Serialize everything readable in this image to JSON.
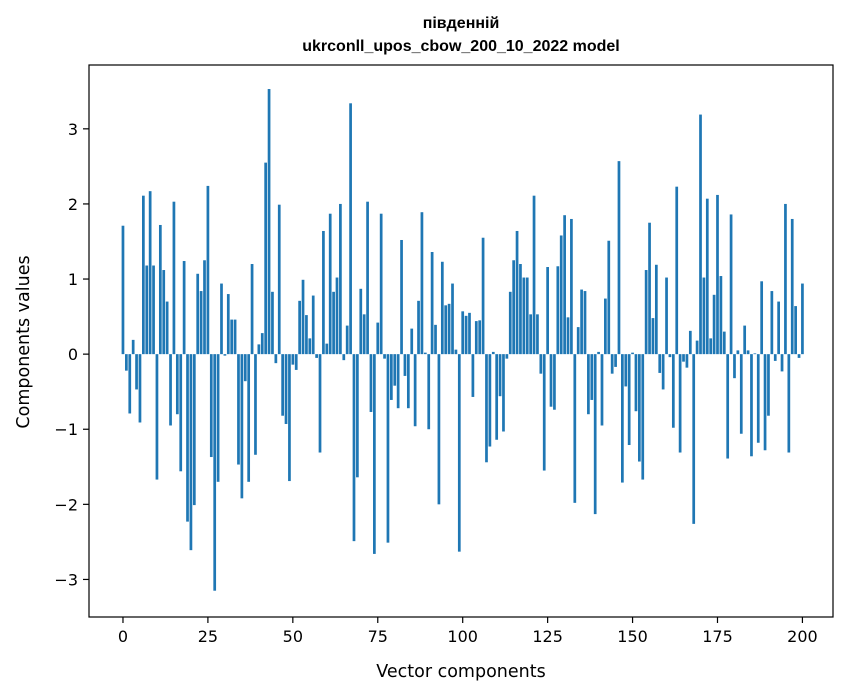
{
  "chart_data": {
    "type": "bar",
    "title_line1": "південній",
    "title_line2": "ukrconll_upos_cbow_200_10_2022 model",
    "xlabel": "Vector components",
    "ylabel": "Components values",
    "xlim": [
      -10,
      209
    ],
    "ylim": [
      -3.5,
      3.85
    ],
    "xticks": [
      0,
      25,
      50,
      75,
      100,
      125,
      150,
      175,
      200
    ],
    "yticks": [
      -3,
      -2,
      -1,
      0,
      1,
      2,
      3
    ],
    "ytick_labels": [
      "−3",
      "−2",
      "−1",
      "0",
      "1",
      "2",
      "3"
    ],
    "bar_color": "#1f77b4",
    "values": [
      1.71,
      -0.22,
      -0.79,
      0.19,
      -0.47,
      -0.91,
      2.11,
      1.18,
      2.17,
      1.18,
      -1.67,
      1.72,
      1.12,
      0.7,
      -0.95,
      2.03,
      -0.8,
      -1.56,
      1.24,
      -2.23,
      -2.61,
      -2.01,
      1.07,
      0.84,
      1.25,
      2.24,
      -1.37,
      -3.15,
      -1.7,
      0.94,
      -0.02,
      0.8,
      0.46,
      0.46,
      -1.47,
      -1.92,
      -0.36,
      -1.7,
      1.2,
      -1.34,
      0.13,
      0.28,
      2.55,
      3.53,
      0.83,
      -0.12,
      1.99,
      -0.82,
      -0.93,
      -1.69,
      -0.14,
      -0.21,
      0.71,
      0.99,
      0.52,
      0.21,
      0.78,
      -0.05,
      -1.31,
      1.64,
      0.14,
      1.87,
      0.83,
      1.02,
      2.0,
      -0.08,
      0.38,
      3.34,
      -2.49,
      -1.64,
      0.87,
      0.53,
      2.03,
      -0.77,
      -2.66,
      0.42,
      1.87,
      -0.06,
      -2.51,
      -0.61,
      -0.42,
      -0.72,
      1.52,
      -0.29,
      -0.72,
      0.34,
      -0.96,
      0.71,
      1.89,
      0.02,
      -1.0,
      1.36,
      0.39,
      -2.0,
      1.23,
      0.65,
      0.67,
      0.94,
      0.06,
      -2.63,
      0.57,
      0.51,
      0.55,
      -0.57,
      0.44,
      0.45,
      1.55,
      -1.44,
      -1.23,
      0.03,
      -1.14,
      -0.56,
      -1.03,
      -0.06,
      0.83,
      1.25,
      1.64,
      1.2,
      1.02,
      1.02,
      0.53,
      2.11,
      0.53,
      -0.26,
      -1.55,
      1.16,
      -0.7,
      -0.74,
      1.17,
      1.58,
      1.85,
      0.49,
      1.8,
      -1.98,
      0.36,
      0.86,
      0.84,
      -0.8,
      -0.61,
      -2.13,
      0.03,
      -0.95,
      0.74,
      1.51,
      -0.26,
      -0.17,
      2.57,
      -1.71,
      -0.43,
      -1.21,
      0.02,
      -0.76,
      -1.43,
      -1.67,
      1.12,
      1.75,
      0.48,
      1.19,
      -0.25,
      -0.47,
      1.02,
      -0.04,
      -0.98,
      2.23,
      -1.31,
      -0.1,
      -0.18,
      0.31,
      -2.26,
      0.18,
      3.19,
      1.02,
      2.07,
      0.21,
      0.79,
      2.12,
      1.04,
      0.3,
      -1.39,
      1.86,
      -0.32,
      0.05,
      -1.06,
      0.38,
      0.05,
      -1.36,
      0.01,
      -1.18,
      0.97,
      -1.28,
      -0.82,
      0.84,
      -0.09,
      0.7,
      -0.23,
      2.0,
      -1.31,
      1.8,
      0.64,
      -0.05,
      0.94
    ]
  }
}
